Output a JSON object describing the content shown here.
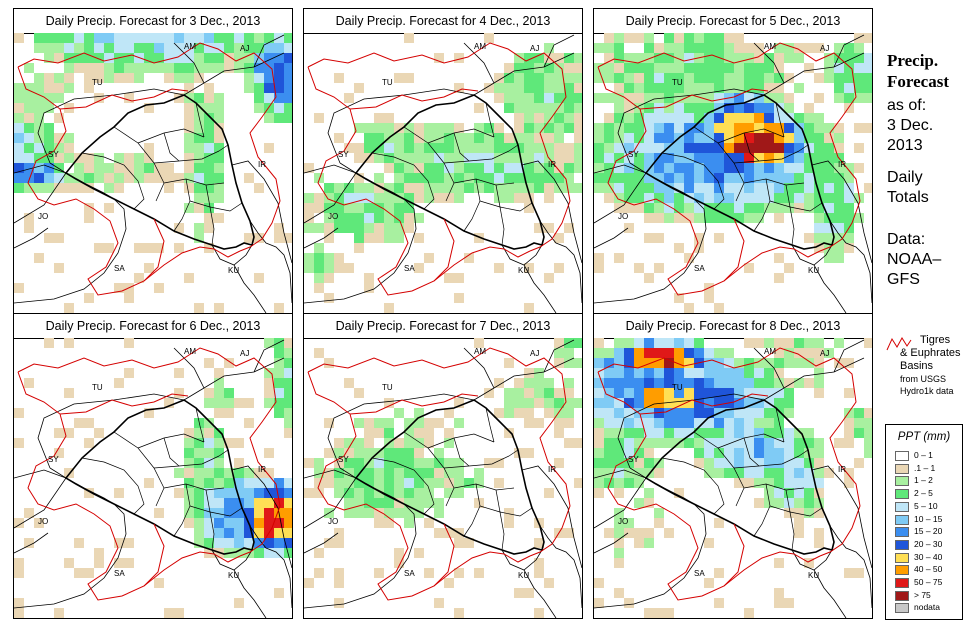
{
  "panels": [
    {
      "title": "Daily Precip. Forecast for  3 Dec., 2013",
      "day": 3
    },
    {
      "title": "Daily Precip. Forecast for  4 Dec., 2013",
      "day": 4
    },
    {
      "title": "Daily Precip. Forecast for  5 Dec., 2013",
      "day": 5
    },
    {
      "title": "Daily Precip. Forecast for  6 Dec., 2013",
      "day": 6
    },
    {
      "title": "Daily Precip. Forecast for  7 Dec., 2013",
      "day": 7
    },
    {
      "title": "Daily Precip. Forecast for  8 Dec., 2013",
      "day": 8
    }
  ],
  "country_labels": {
    "AM": "AM",
    "AJ": "AJ",
    "TU": "TU",
    "SY": "SY",
    "IR": "IR",
    "JO": "JO",
    "SA": "SA",
    "KU": "KU"
  },
  "sidebar": {
    "title_line1": "Precip.",
    "title_line2": "Forecast",
    "asof_label": "as of:",
    "asof_date1": "3 Dec.",
    "asof_date2": "2013",
    "totals1": "Daily",
    "totals2": "Totals",
    "data1": "Data:",
    "data2": "NOAA–",
    "data3": "GFS"
  },
  "basin_note": {
    "line1": "Tigres",
    "line2": "& Euphrates",
    "line3": "Basins",
    "line4": "from USGS",
    "line5": "Hydro1k data",
    "line_color": "#d40000"
  },
  "legend": {
    "title": "PPT (mm)",
    "classes": [
      {
        "label": "0 – 1",
        "color": "#ffffff"
      },
      {
        "label": ".1 – 1",
        "color": "#ead7b5"
      },
      {
        "label": "1 – 2",
        "color": "#a8f0a0"
      },
      {
        "label": "2 – 5",
        "color": "#5fe87a"
      },
      {
        "label": "5 – 10",
        "color": "#bfe6f7"
      },
      {
        "label": "10 – 15",
        "color": "#7fcbf5"
      },
      {
        "label": "15 – 20",
        "color": "#3b8ef0"
      },
      {
        "label": "20 – 30",
        "color": "#1f55d9"
      },
      {
        "label": "30 – 40",
        "color": "#ffdf55"
      },
      {
        "label": "40 – 50",
        "color": "#ff9d00"
      },
      {
        "label": "50 – 75",
        "color": "#e01818"
      },
      {
        "label": "> 75",
        "color": "#a01818"
      },
      {
        "label": "nodata",
        "color": "#c8c8c8"
      }
    ]
  },
  "colors": {
    "border": "#000000",
    "basin": "#d40000"
  }
}
